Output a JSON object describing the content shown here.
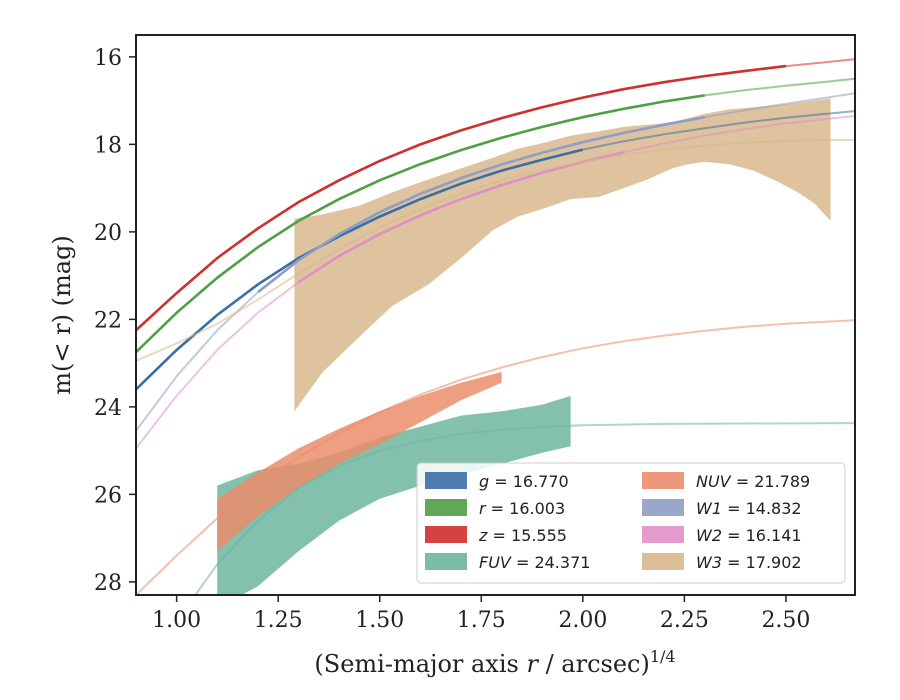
{
  "chart_data": {
    "type": "line",
    "xlabel_main": "(Semi-major axis ",
    "xlabel_var": "r",
    "xlabel_tail": " / arcsec)",
    "xlabel_sup": "1/4",
    "ylabel": "m(< r) (mag)",
    "xlim": [
      0.9,
      2.67
    ],
    "ylim": [
      28.3,
      15.5
    ],
    "y_inverted": true,
    "xticks": [
      1.0,
      1.25,
      1.5,
      1.75,
      2.0,
      2.25,
      2.5
    ],
    "xtick_labels": [
      "1.00",
      "1.25",
      "1.50",
      "1.75",
      "2.00",
      "2.25",
      "2.50"
    ],
    "yticks": [
      16,
      18,
      20,
      22,
      24,
      26,
      28
    ],
    "ytick_labels": [
      "16",
      "18",
      "20",
      "22",
      "24",
      "26",
      "28"
    ],
    "legend_position": "lower-right",
    "series": [
      {
        "name": "g = 16.770",
        "color": "#3a6fa5",
        "x": [
          0.9,
          1.0,
          1.1,
          1.2,
          1.3,
          1.4,
          1.5,
          1.6,
          1.7,
          1.8,
          1.9,
          2.0,
          2.1,
          2.2,
          2.3,
          2.4,
          2.5,
          2.6,
          2.67
        ],
        "y": [
          23.6,
          22.7,
          21.9,
          21.2,
          20.6,
          20.1,
          19.65,
          19.25,
          18.9,
          18.6,
          18.35,
          18.12,
          17.93,
          17.77,
          17.63,
          17.5,
          17.39,
          17.3,
          17.24
        ],
        "solid_x_range": [
          0.9,
          2.05
        ]
      },
      {
        "name": "r = 16.003",
        "color": "#4f9f45",
        "x": [
          0.9,
          1.0,
          1.1,
          1.2,
          1.3,
          1.4,
          1.5,
          1.6,
          1.7,
          1.8,
          1.9,
          2.0,
          2.1,
          2.2,
          2.3,
          2.4,
          2.5,
          2.6,
          2.67
        ],
        "y": [
          22.75,
          21.85,
          21.05,
          20.35,
          19.75,
          19.25,
          18.82,
          18.45,
          18.13,
          17.85,
          17.6,
          17.38,
          17.19,
          17.02,
          16.88,
          16.76,
          16.66,
          16.57,
          16.5
        ],
        "solid_x_range": [
          0.9,
          2.3
        ]
      },
      {
        "name": "z = 15.555",
        "color": "#cf2f2f",
        "x": [
          0.9,
          1.0,
          1.1,
          1.2,
          1.3,
          1.4,
          1.5,
          1.6,
          1.7,
          1.8,
          1.9,
          2.0,
          2.1,
          2.2,
          2.3,
          2.4,
          2.5,
          2.6,
          2.67
        ],
        "y": [
          22.25,
          21.4,
          20.6,
          19.92,
          19.32,
          18.82,
          18.38,
          18.0,
          17.68,
          17.4,
          17.15,
          16.93,
          16.74,
          16.58,
          16.44,
          16.32,
          16.21,
          16.12,
          16.05
        ],
        "solid_x_range": [
          0.9,
          2.52
        ]
      },
      {
        "name": "FUV = 24.371",
        "color": "#6db5a0",
        "x": [
          0.9,
          1.0,
          1.1,
          1.2,
          1.3,
          1.4,
          1.5,
          1.6,
          1.7,
          1.8,
          1.9,
          2.0,
          2.2,
          2.4,
          2.67
        ],
        "y": [
          30.0,
          28.9,
          27.6,
          26.6,
          25.85,
          25.35,
          25.0,
          24.78,
          24.62,
          24.52,
          24.46,
          24.42,
          24.39,
          24.38,
          24.37
        ],
        "band_x": [
          1.1,
          1.2,
          1.3,
          1.4,
          1.5,
          1.6,
          1.7,
          1.8,
          1.9,
          1.97
        ],
        "band_low": [
          28.6,
          28.1,
          27.3,
          26.6,
          26.1,
          25.8,
          25.55,
          25.3,
          25.05,
          24.9
        ],
        "band_high": [
          25.8,
          25.45,
          25.3,
          25.05,
          24.7,
          24.45,
          24.2,
          24.1,
          23.95,
          23.75
        ]
      },
      {
        "name": "NUV = 21.789",
        "color": "#eb8d6b",
        "x": [
          0.9,
          1.0,
          1.1,
          1.2,
          1.3,
          1.4,
          1.5,
          1.6,
          1.7,
          1.8,
          1.9,
          2.0,
          2.1,
          2.2,
          2.3,
          2.4,
          2.5,
          2.67
        ],
        "y": [
          28.3,
          27.4,
          26.55,
          25.8,
          25.15,
          24.6,
          24.12,
          23.72,
          23.38,
          23.1,
          22.86,
          22.66,
          22.5,
          22.37,
          22.26,
          22.17,
          22.1,
          22.02
        ],
        "band_x": [
          1.1,
          1.2,
          1.3,
          1.4,
          1.5,
          1.6,
          1.7,
          1.8
        ],
        "band_low": [
          27.3,
          26.5,
          25.85,
          25.3,
          24.85,
          24.35,
          23.85,
          23.45
        ],
        "band_high": [
          26.1,
          25.5,
          24.95,
          24.5,
          24.1,
          23.75,
          23.45,
          23.2
        ]
      },
      {
        "name": "W1 = 14.832",
        "color": "#8e9ec4",
        "x": [
          0.9,
          1.0,
          1.1,
          1.2,
          1.3,
          1.4,
          1.5,
          1.6,
          1.7,
          1.8,
          1.9,
          2.0,
          2.1,
          2.2,
          2.3,
          2.4,
          2.5,
          2.6,
          2.67
        ],
        "y": [
          24.55,
          23.3,
          22.25,
          21.38,
          20.65,
          20.05,
          19.55,
          19.13,
          18.77,
          18.46,
          18.19,
          17.95,
          17.74,
          17.55,
          17.38,
          17.22,
          17.07,
          16.93,
          16.83
        ],
        "solid_x_range": [
          1.2,
          2.3
        ]
      },
      {
        "name": "W2 = 16.141",
        "color": "#e08fc6",
        "x": [
          0.9,
          1.0,
          1.1,
          1.2,
          1.3,
          1.4,
          1.5,
          1.6,
          1.7,
          1.8,
          1.9,
          2.0,
          2.1,
          2.2,
          2.3,
          2.4,
          2.5,
          2.6,
          2.67
        ],
        "y": [
          24.95,
          23.75,
          22.7,
          21.85,
          21.15,
          20.55,
          20.05,
          19.62,
          19.25,
          18.93,
          18.65,
          18.4,
          18.18,
          17.98,
          17.8,
          17.65,
          17.52,
          17.42,
          17.35
        ],
        "solid_x_range": [
          1.25,
          2.1
        ]
      },
      {
        "name": "W3 = 17.902",
        "color": "#d8b88d",
        "x": [
          0.9,
          1.0,
          1.1,
          1.2,
          1.3,
          1.4,
          1.5,
          1.6,
          1.7,
          1.8,
          1.9,
          2.0,
          2.1,
          2.2,
          2.3,
          2.4,
          2.5,
          2.6,
          2.67
        ],
        "y": [
          22.95,
          22.55,
          22.1,
          21.55,
          20.95,
          20.4,
          19.9,
          19.48,
          19.12,
          18.82,
          18.58,
          18.4,
          18.24,
          18.12,
          18.03,
          17.96,
          17.92,
          17.9,
          17.9
        ],
        "band_x": [
          1.29,
          1.36,
          1.45,
          1.53,
          1.62,
          1.7,
          1.78,
          1.84,
          1.91,
          1.97,
          2.04,
          2.1,
          2.16,
          2.22,
          2.26,
          2.3,
          2.36,
          2.42,
          2.48,
          2.53,
          2.57,
          2.61
        ],
        "band_low": [
          24.1,
          23.2,
          22.4,
          21.7,
          21.2,
          20.6,
          19.95,
          19.65,
          19.45,
          19.25,
          19.2,
          19.0,
          18.8,
          18.55,
          18.45,
          18.4,
          18.45,
          18.6,
          18.85,
          19.1,
          19.35,
          19.75
        ],
        "band_high": [
          19.7,
          19.6,
          19.4,
          19.1,
          18.8,
          18.55,
          18.3,
          18.1,
          17.95,
          17.8,
          17.7,
          17.6,
          17.55,
          17.5,
          17.4,
          17.3,
          17.2,
          17.15,
          17.1,
          17.05,
          17.0,
          16.95
        ]
      }
    ]
  }
}
